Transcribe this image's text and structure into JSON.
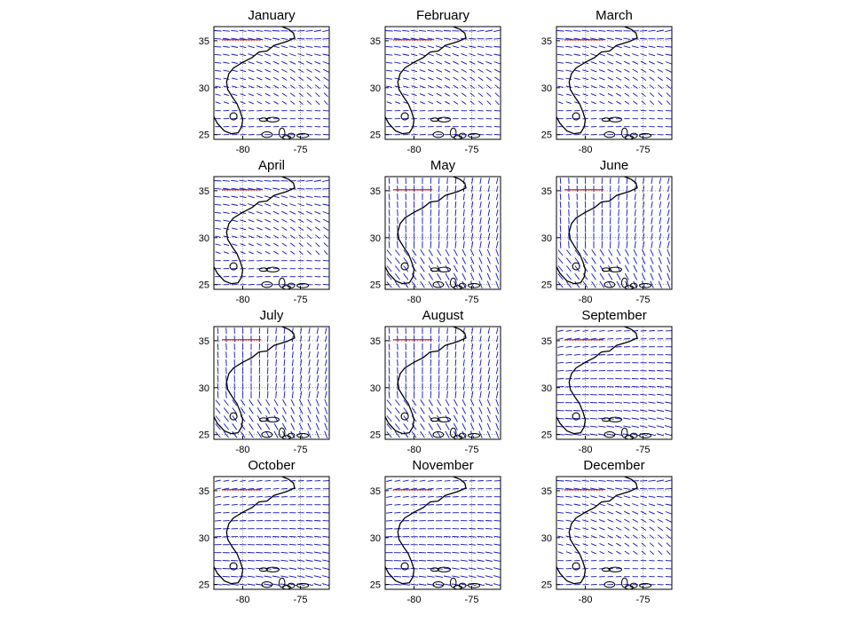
{
  "figure": {
    "panels": [
      {
        "title": "January",
        "regime": "westerly"
      },
      {
        "title": "February",
        "regime": "westerly"
      },
      {
        "title": "March",
        "regime": "westerly"
      },
      {
        "title": "April",
        "regime": "westerly"
      },
      {
        "title": "May",
        "regime": "southerly"
      },
      {
        "title": "June",
        "regime": "southerly"
      },
      {
        "title": "July",
        "regime": "southerly"
      },
      {
        "title": "August",
        "regime": "southerly"
      },
      {
        "title": "September",
        "regime": "easterly"
      },
      {
        "title": "October",
        "regime": "easterly"
      },
      {
        "title": "November",
        "regime": "easterly"
      },
      {
        "title": "December",
        "regime": "westerly"
      }
    ],
    "x_ticks": [
      {
        "value": -80,
        "label": "-80"
      },
      {
        "value": -75,
        "label": "-75"
      }
    ],
    "y_ticks": [
      {
        "value": 35,
        "label": "35"
      },
      {
        "value": 30,
        "label": "30"
      },
      {
        "value": 25,
        "label": "25"
      }
    ],
    "lon_range": [
      -82.5,
      -72.5
    ],
    "lat_range": [
      24.5,
      36.5
    ],
    "vector_color": "#1010c0",
    "coastline_color": "#000000",
    "scale_arrow_color": "#e00000",
    "gridlines": "dotted"
  }
}
